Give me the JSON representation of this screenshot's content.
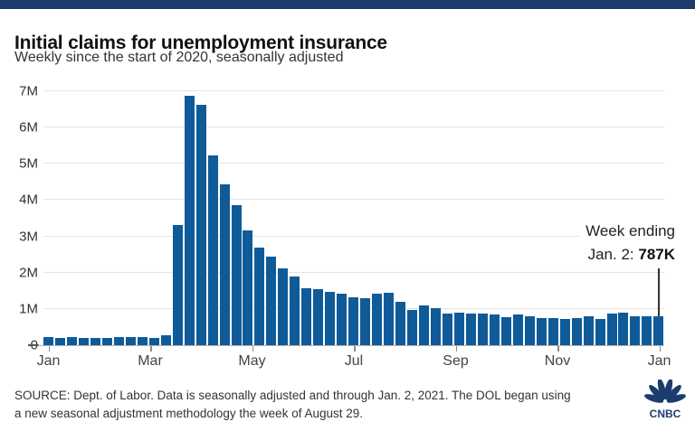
{
  "colors": {
    "top_strip": "#1d3c6e",
    "bar": "#0f5b99",
    "logo_navy": "#1d3c6e"
  },
  "header": {
    "title": "Initial claims for unemployment insurance",
    "subtitle": "Weekly since the start of 2020, seasonally adjusted"
  },
  "chart_data": {
    "type": "bar",
    "title": "Initial claims for unemployment insurance",
    "subtitle": "Weekly since the start of 2020, seasonally adjusted",
    "ylabel": "Initial claims",
    "ylim": [
      0,
      7000000
    ],
    "grid": "horizontal",
    "y_tick_labels": [
      "0",
      "1M",
      "2M",
      "3M",
      "4M",
      "5M",
      "6M",
      "7M"
    ],
    "x_tick_labels": [
      "Jan",
      "Mar",
      "May",
      "Jul",
      "Sep",
      "Nov",
      "Jan"
    ],
    "week_ending": [
      "2020-01-04",
      "2020-01-11",
      "2020-01-18",
      "2020-01-25",
      "2020-02-01",
      "2020-02-08",
      "2020-02-15",
      "2020-02-22",
      "2020-02-29",
      "2020-03-07",
      "2020-03-14",
      "2020-03-21",
      "2020-03-28",
      "2020-04-04",
      "2020-04-11",
      "2020-04-18",
      "2020-04-25",
      "2020-05-02",
      "2020-05-09",
      "2020-05-16",
      "2020-05-23",
      "2020-05-30",
      "2020-06-06",
      "2020-06-13",
      "2020-06-20",
      "2020-06-27",
      "2020-07-04",
      "2020-07-11",
      "2020-07-18",
      "2020-07-25",
      "2020-08-01",
      "2020-08-08",
      "2020-08-15",
      "2020-08-22",
      "2020-08-29",
      "2020-09-05",
      "2020-09-12",
      "2020-09-19",
      "2020-09-26",
      "2020-10-03",
      "2020-10-10",
      "2020-10-17",
      "2020-10-24",
      "2020-10-31",
      "2020-11-07",
      "2020-11-14",
      "2020-11-21",
      "2020-11-28",
      "2020-12-05",
      "2020-12-12",
      "2020-12-19",
      "2020-12-26",
      "2021-01-02"
    ],
    "values_thousands": [
      214,
      207,
      220,
      212,
      201,
      204,
      215,
      220,
      217,
      211,
      282,
      3307,
      6867,
      6615,
      5237,
      4442,
      3867,
      3176,
      2687,
      2446,
      2123,
      1897,
      1566,
      1540,
      1480,
      1408,
      1310,
      1308,
      1422,
      1435,
      1191,
      971,
      1104,
      1011,
      884,
      893,
      866,
      873,
      849,
      767,
      842,
      797,
      758,
      751,
      711,
      748,
      787,
      716,
      862,
      892,
      806,
      790,
      787
    ],
    "annotation": {
      "line1": "Week ending",
      "line2_prefix": "Jan. 2: ",
      "line2_value": "787K"
    }
  },
  "footer": {
    "source_line1": "SOURCE: Dept. of Labor. Data is seasonally adjusted and through Jan. 2, 2021. The DOL began using",
    "source_line2": "a new seasonal adjustment methodology the week of August 29.",
    "logo_text": "CNBC"
  }
}
